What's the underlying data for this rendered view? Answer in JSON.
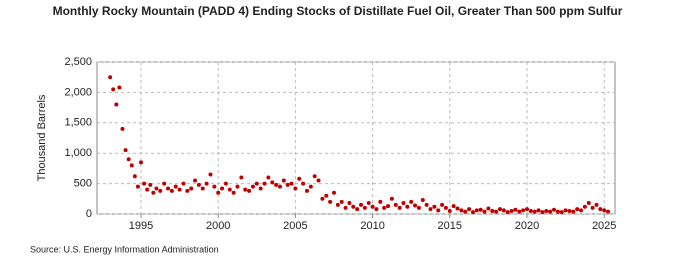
{
  "chart_data": {
    "type": "scatter",
    "title": "Monthly Rocky Mountain (PADD 4) Ending Stocks of Distillate Fuel Oil, Greater Than 500 ppm Sulfur",
    "y_label": "Thousand Barrels",
    "source": "Source: U.S. Energy Information Administration",
    "color": "#c00000",
    "grid": true,
    "xlim": [
      1992.15,
      2025.7
    ],
    "ylim": [
      0,
      2500
    ],
    "xticks": [
      1995,
      2000,
      2005,
      2010,
      2015,
      2020,
      2025
    ],
    "yticks": [
      0,
      500,
      {
        "value": 1000,
        "label": "1,000"
      },
      {
        "value": 1500,
        "label": "1,500"
      },
      {
        "value": 2000,
        "label": "2,000"
      },
      {
        "value": 2500,
        "label": "2,500"
      }
    ],
    "x": [
      1993.0,
      1993.2,
      1993.4,
      1993.6,
      1993.8,
      1994.0,
      1994.2,
      1994.4,
      1994.6,
      1994.8,
      1995.0,
      1995.2,
      1995.4,
      1995.6,
      1995.8,
      1996.0,
      1996.25,
      1996.5,
      1996.75,
      1997.0,
      1997.25,
      1997.5,
      1997.75,
      1998.0,
      1998.25,
      1998.5,
      1998.75,
      1999.0,
      1999.25,
      1999.5,
      1999.75,
      2000.0,
      2000.25,
      2000.5,
      2000.75,
      2001.0,
      2001.25,
      2001.5,
      2001.75,
      2002.0,
      2002.25,
      2002.5,
      2002.75,
      2003.0,
      2003.25,
      2003.5,
      2003.75,
      2004.0,
      2004.25,
      2004.5,
      2004.75,
      2005.0,
      2005.25,
      2005.5,
      2005.75,
      2006.0,
      2006.25,
      2006.5,
      2006.75,
      2007.0,
      2007.25,
      2007.5,
      2007.75,
      2008.0,
      2008.25,
      2008.5,
      2008.75,
      2009.0,
      2009.25,
      2009.5,
      2009.75,
      2010.0,
      2010.25,
      2010.5,
      2010.75,
      2011.0,
      2011.25,
      2011.5,
      2011.75,
      2012.0,
      2012.25,
      2012.5,
      2012.75,
      2013.0,
      2013.25,
      2013.5,
      2013.75,
      2014.0,
      2014.25,
      2014.5,
      2014.75,
      2015.0,
      2015.25,
      2015.5,
      2015.75,
      2016.0,
      2016.25,
      2016.5,
      2016.75,
      2017.0,
      2017.25,
      2017.5,
      2017.75,
      2018.0,
      2018.25,
      2018.5,
      2018.75,
      2019.0,
      2019.25,
      2019.5,
      2019.75,
      2020.0,
      2020.25,
      2020.5,
      2020.75,
      2021.0,
      2021.25,
      2021.5,
      2021.75,
      2022.0,
      2022.25,
      2022.5,
      2022.75,
      2023.0,
      2023.25,
      2023.5,
      2023.75,
      2024.0,
      2024.25,
      2024.5,
      2024.75,
      2025.0,
      2025.25
    ],
    "values": [
      2250,
      2050,
      1800,
      2080,
      1400,
      1050,
      900,
      800,
      620,
      450,
      850,
      500,
      400,
      480,
      350,
      420,
      380,
      500,
      420,
      380,
      450,
      400,
      500,
      380,
      420,
      550,
      480,
      420,
      500,
      650,
      450,
      350,
      420,
      500,
      400,
      350,
      450,
      600,
      400,
      380,
      450,
      500,
      420,
      500,
      600,
      520,
      480,
      450,
      550,
      480,
      500,
      420,
      580,
      500,
      380,
      450,
      620,
      550,
      250,
      300,
      200,
      350,
      150,
      200,
      100,
      180,
      120,
      80,
      150,
      100,
      180,
      120,
      80,
      200,
      100,
      130,
      250,
      150,
      100,
      180,
      120,
      200,
      140,
      100,
      230,
      150,
      80,
      120,
      60,
      150,
      100,
      50,
      130,
      90,
      60,
      40,
      80,
      30,
      60,
      70,
      40,
      90,
      50,
      40,
      80,
      60,
      30,
      50,
      70,
      40,
      60,
      80,
      50,
      40,
      60,
      30,
      50,
      40,
      70,
      40,
      30,
      60,
      50,
      40,
      80,
      60,
      120,
      180,
      100,
      150,
      80,
      60,
      40
    ]
  }
}
